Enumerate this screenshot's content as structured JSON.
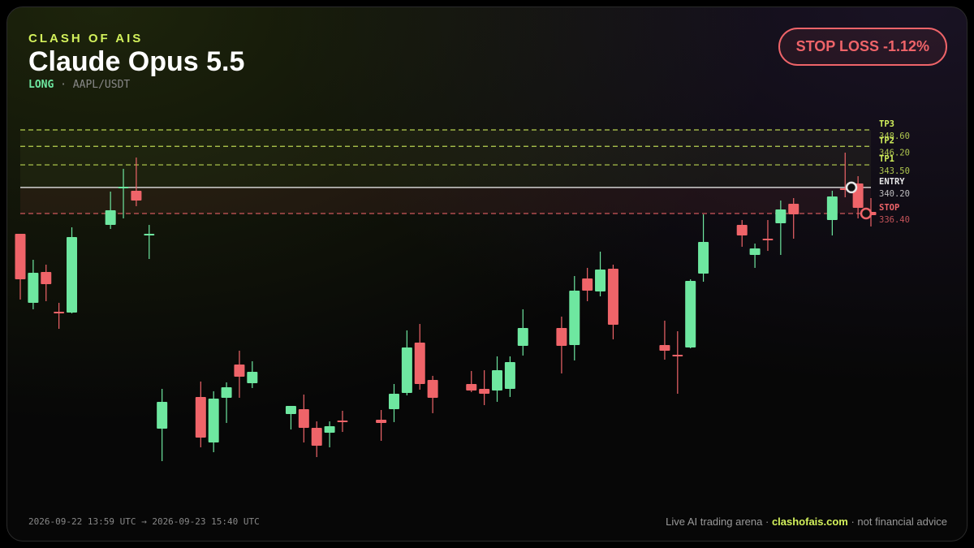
{
  "header": {
    "brand": "CLASH OF AIS",
    "title": "Claude Opus 5.5",
    "side": "LONG",
    "pair": "· AAPL/USDT",
    "badge": "STOP LOSS -1.12%"
  },
  "chart_data": {
    "type": "candlestick",
    "open": [
      333.44,
      323.37,
      327.87,
      322.07,
      321.95,
      null,
      null,
      334.74,
      340.07,
      339.72,
      333.2,
      305.02,
      null,
      null,
      309.64,
      303.0,
      309.52,
      314.37,
      311.65,
      null,
      null,
      307.15,
      307.86,
      305.14,
      304.43,
      306.2,
      null,
      null,
      306.32,
      307.86,
      310.23,
      317.57,
      312.12,
      null,
      null,
      311.53,
      310.82,
      310.58,
      310.82,
      317.1,
      null,
      null,
      319.7,
      317.22,
      326.93,
      325.03,
      328.35,
      null,
      null,
      null,
      317.22,
      315.79,
      316.86,
      327.64,
      null,
      null,
      334.74,
      330.36,
      332.73,
      334.98,
      337.82,
      null,
      null,
      335.45,
      340.07,
      340.78,
      336.64
    ],
    "high": [
      333.44,
      329.65,
      328.94,
      323.37,
      334.39,
      null,
      null,
      339.6,
      342.92,
      344.57,
      334.74,
      310.82,
      null,
      null,
      311.89,
      310.47,
      311.77,
      316.39,
      314.85,
      null,
      null,
      308.33,
      309.99,
      306.08,
      306.08,
      307.62,
      null,
      null,
      307.74,
      311.53,
      319.35,
      320.29,
      312.72,
      null,
      null,
      313.43,
      313.54,
      315.56,
      315.56,
      322.43,
      null,
      null,
      321.36,
      327.28,
      328.47,
      330.84,
      328.94,
      null,
      null,
      null,
      320.77,
      319.23,
      326.81,
      336.28,
      null,
      null,
      335.45,
      332.02,
      335.45,
      338.3,
      338.65,
      null,
      null,
      339.72,
      345.28,
      341.85,
      338.65
    ],
    "low": [
      323.85,
      322.43,
      323.61,
      319.58,
      321.83,
      null,
      null,
      334.15,
      335.69,
      337.47,
      329.77,
      300.28,
      null,
      null,
      302.29,
      301.58,
      305.85,
      309.52,
      310.94,
      null,
      null,
      304.9,
      303.0,
      300.87,
      302.29,
      304.54,
      null,
      null,
      303.24,
      305.97,
      309.87,
      310.7,
      307.27,
      null,
      null,
      310.35,
      308.45,
      308.93,
      309.64,
      315.68,
      null,
      null,
      313.07,
      314.97,
      323.61,
      324.32,
      318.05,
      null,
      null,
      null,
      315.08,
      310.11,
      316.74,
      326.45,
      null,
      null,
      331.55,
      328.47,
      330.95,
      330.36,
      332.73,
      null,
      null,
      333.2,
      338.77,
      335.69,
      334.51
    ],
    "close": [
      326.81,
      327.76,
      326.1,
      321.83,
      332.97,
      null,
      null,
      336.88,
      340.31,
      338.3,
      333.44,
      308.93,
      null,
      null,
      303.71,
      309.4,
      311.06,
      312.6,
      313.31,
      null,
      null,
      308.33,
      305.14,
      302.53,
      305.37,
      305.97,
      null,
      null,
      305.85,
      310.11,
      316.86,
      311.53,
      309.52,
      null,
      null,
      310.58,
      310.11,
      313.54,
      314.73,
      319.7,
      null,
      null,
      317.1,
      325.15,
      325.15,
      328.23,
      320.18,
      null,
      null,
      null,
      316.39,
      315.56,
      326.57,
      332.26,
      null,
      null,
      333.2,
      331.31,
      332.49,
      336.99,
      336.28,
      null,
      null,
      338.89,
      339.84,
      337.23,
      336.16
    ],
    "up_color": "#6ee7a0",
    "down_color": "#ef6469",
    "ylim": [
      296.37,
      350.85
    ],
    "levels": [
      {
        "name": "TP3",
        "value": 348.6,
        "value_label": "348.60",
        "color": "#d4f25c",
        "dashed": true
      },
      {
        "name": "TP2",
        "value": 346.2,
        "value_label": "346.20",
        "color": "#d4f25c",
        "dashed": true
      },
      {
        "name": "TP1",
        "value": 343.5,
        "value_label": "343.50",
        "color": "#d4f25c",
        "dashed": true
      },
      {
        "name": "ENTRY",
        "value": 340.2,
        "value_label": "340.20",
        "color": "#e6e6e6",
        "dashed": false
      },
      {
        "name": "STOP",
        "value": 336.4,
        "value_label": "336.40",
        "color": "#ef6469",
        "dashed": true
      }
    ]
  },
  "footer": {
    "range": "2026-09-22 13:59 UTC → 2026-09-23 15:40 UTC",
    "tagline": "Live AI trading arena · ",
    "site": "clashofais.com",
    "disclaimer": " · not financial advice"
  }
}
